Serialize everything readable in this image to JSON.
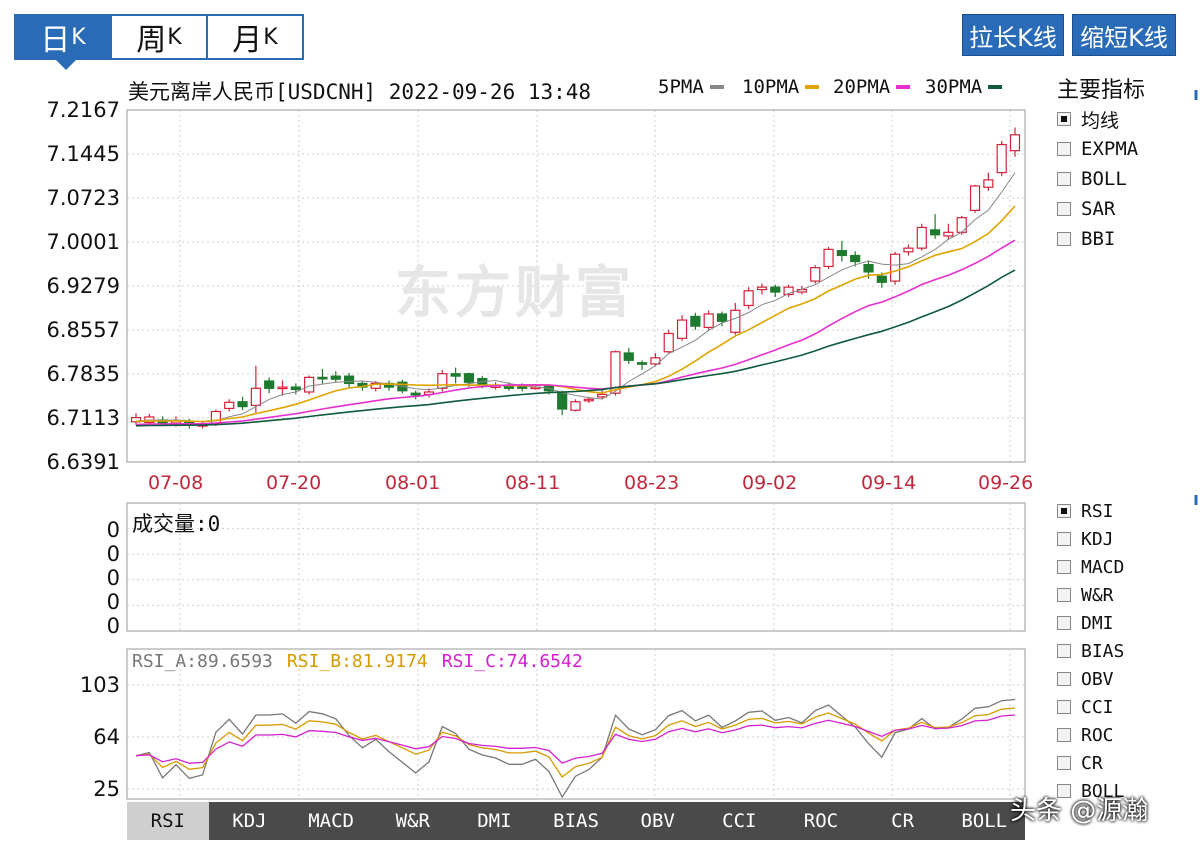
{
  "period_tabs": [
    {
      "label": "日",
      "suffix": "K",
      "active": true
    },
    {
      "label": "周",
      "suffix": "K",
      "active": false
    },
    {
      "label": "月",
      "suffix": "K",
      "active": false
    }
  ],
  "right_buttons": {
    "lengthen": "拉长K线",
    "shorten": "缩短K线"
  },
  "title": "美元离岸人民币[USDCNH] 2022-09-26 13:48",
  "ma_legend": [
    {
      "name": "5PMA",
      "color": "#888888"
    },
    {
      "name": "10PMA",
      "color": "#e0a400"
    },
    {
      "name": "20PMA",
      "color": "#e62fd2"
    },
    {
      "name": "30PMA",
      "color": "#0f5b3c"
    }
  ],
  "main_indicator": {
    "heading": "主要指标",
    "items": [
      {
        "label": "均线",
        "checked": true
      },
      {
        "label": "EXPMA",
        "checked": false
      },
      {
        "label": "BOLL",
        "checked": false
      },
      {
        "label": "SAR",
        "checked": false
      },
      {
        "label": "BBI",
        "checked": false
      }
    ]
  },
  "sub_indicator": {
    "items": [
      {
        "label": "RSI",
        "checked": true
      },
      {
        "label": "KDJ",
        "checked": false
      },
      {
        "label": "MACD",
        "checked": false
      },
      {
        "label": "W&R",
        "checked": false
      },
      {
        "label": "DMI",
        "checked": false
      },
      {
        "label": "BIAS",
        "checked": false
      },
      {
        "label": "OBV",
        "checked": false
      },
      {
        "label": "CCI",
        "checked": false
      },
      {
        "label": "ROC",
        "checked": false
      },
      {
        "label": "CR",
        "checked": false
      },
      {
        "label": "BOLL",
        "checked": false
      }
    ]
  },
  "watermark": "东方财富",
  "corner_watermark": "头条 @源瀚",
  "volume_panel": {
    "label": "成交量",
    "value": "0",
    "y_ticks": [
      "0",
      "0",
      "0",
      "0",
      "0"
    ]
  },
  "rsi_panel": {
    "labels": [
      {
        "text": "RSI_A:89.6593",
        "color": "#777777"
      },
      {
        "text": "RSI_B:81.9174",
        "color": "#d79b00"
      },
      {
        "text": "RSI_C:74.6542",
        "color": "#d61fd2"
      }
    ],
    "y_ticks": [
      "103",
      "64",
      "25"
    ]
  },
  "bottom_tabs": [
    "RSI",
    "KDJ",
    "MACD",
    "W&R",
    "DMI",
    "BIAS",
    "OBV",
    "CCI",
    "ROC",
    "CR",
    "BOLL"
  ],
  "chart_data": {
    "type": "candlestick",
    "y_ticks": [
      "7.2167",
      "7.1445",
      "7.0723",
      "7.0001",
      "6.9279",
      "6.8557",
      "6.7835",
      "6.7113",
      "6.6391"
    ],
    "ylim": [
      6.6391,
      7.2167
    ],
    "x_ticks": [
      "07-08",
      "07-20",
      "08-01",
      "08-11",
      "08-23",
      "09-02",
      "09-14",
      "09-26"
    ],
    "up_color": "#d4213a",
    "down_color": "#1e7a2e",
    "candles": [
      [
        6.705,
        6.712,
        6.7,
        6.719
      ],
      [
        6.704,
        6.713,
        6.702,
        6.718
      ],
      [
        6.708,
        6.703,
        6.7,
        6.714
      ],
      [
        6.703,
        6.707,
        6.697,
        6.714
      ],
      [
        6.705,
        6.7,
        6.694,
        6.71
      ],
      [
        6.698,
        6.701,
        6.694,
        6.706
      ],
      [
        6.702,
        6.722,
        6.698,
        6.725
      ],
      [
        6.727,
        6.737,
        6.722,
        6.742
      ],
      [
        6.738,
        6.73,
        6.724,
        6.746
      ],
      [
        6.732,
        6.76,
        6.72,
        6.797
      ],
      [
        6.772,
        6.76,
        6.752,
        6.778
      ],
      [
        6.76,
        6.762,
        6.748,
        6.773
      ],
      [
        6.762,
        6.758,
        6.75,
        6.768
      ],
      [
        6.754,
        6.778,
        6.75,
        6.781
      ],
      [
        6.778,
        6.777,
        6.768,
        6.792
      ],
      [
        6.78,
        6.775,
        6.77,
        6.788
      ],
      [
        6.78,
        6.768,
        6.76,
        6.785
      ],
      [
        6.768,
        6.762,
        6.756,
        6.772
      ],
      [
        6.76,
        6.768,
        6.755,
        6.772
      ],
      [
        6.768,
        6.762,
        6.756,
        6.773
      ],
      [
        6.77,
        6.756,
        6.752,
        6.774
      ],
      [
        6.752,
        6.749,
        6.742,
        6.756
      ],
      [
        6.75,
        6.754,
        6.745,
        6.76
      ],
      [
        6.76,
        6.784,
        6.755,
        6.79
      ],
      [
        6.784,
        6.78,
        6.768,
        6.794
      ],
      [
        6.784,
        6.77,
        6.762,
        6.786
      ],
      [
        6.776,
        6.766,
        6.76,
        6.78
      ],
      [
        6.762,
        6.764,
        6.758,
        6.77
      ],
      [
        6.765,
        6.76,
        6.756,
        6.77
      ],
      [
        6.764,
        6.76,
        6.755,
        6.768
      ],
      [
        6.762,
        6.762,
        6.758,
        6.766
      ],
      [
        6.764,
        6.756,
        6.75,
        6.766
      ],
      [
        6.752,
        6.726,
        6.716,
        6.756
      ],
      [
        6.724,
        6.738,
        6.722,
        6.742
      ],
      [
        6.74,
        6.742,
        6.736,
        6.746
      ],
      [
        6.746,
        6.75,
        6.742,
        6.76
      ],
      [
        6.752,
        6.82,
        6.748,
        6.822
      ],
      [
        6.818,
        6.806,
        6.8,
        6.826
      ],
      [
        6.802,
        6.8,
        6.79,
        6.806
      ],
      [
        6.8,
        6.81,
        6.796,
        6.818
      ],
      [
        6.82,
        6.85,
        6.818,
        6.856
      ],
      [
        6.842,
        6.872,
        6.838,
        6.88
      ],
      [
        6.878,
        6.862,
        6.856,
        6.884
      ],
      [
        6.86,
        6.882,
        6.856,
        6.888
      ],
      [
        6.882,
        6.87,
        6.862,
        6.886
      ],
      [
        6.852,
        6.888,
        6.848,
        6.9
      ],
      [
        6.896,
        6.92,
        6.89,
        6.926
      ],
      [
        6.922,
        6.926,
        6.914,
        6.932
      ],
      [
        6.926,
        6.918,
        6.91,
        6.93
      ],
      [
        6.914,
        6.926,
        6.91,
        6.93
      ],
      [
        6.918,
        6.922,
        6.914,
        6.928
      ],
      [
        6.936,
        6.958,
        6.932,
        6.962
      ],
      [
        6.96,
        6.988,
        6.956,
        6.992
      ],
      [
        6.986,
        6.978,
        6.968,
        7.002
      ],
      [
        6.978,
        6.968,
        6.96,
        6.985
      ],
      [
        6.963,
        6.951,
        6.94,
        6.97
      ],
      [
        6.944,
        6.934,
        6.925,
        6.95
      ],
      [
        6.936,
        6.98,
        6.93,
        6.984
      ],
      [
        6.984,
        6.99,
        6.978,
        6.996
      ],
      [
        6.99,
        7.024,
        6.986,
        7.03
      ],
      [
        7.02,
        7.012,
        7.005,
        7.046
      ],
      [
        7.01,
        7.016,
        7.004,
        7.03
      ],
      [
        7.016,
        7.04,
        7.012,
        7.043
      ],
      [
        7.052,
        7.092,
        7.048,
        7.094
      ],
      [
        7.09,
        7.102,
        7.084,
        7.114
      ],
      [
        7.114,
        7.16,
        7.108,
        7.166
      ],
      [
        7.15,
        7.176,
        7.14,
        7.188
      ]
    ]
  }
}
